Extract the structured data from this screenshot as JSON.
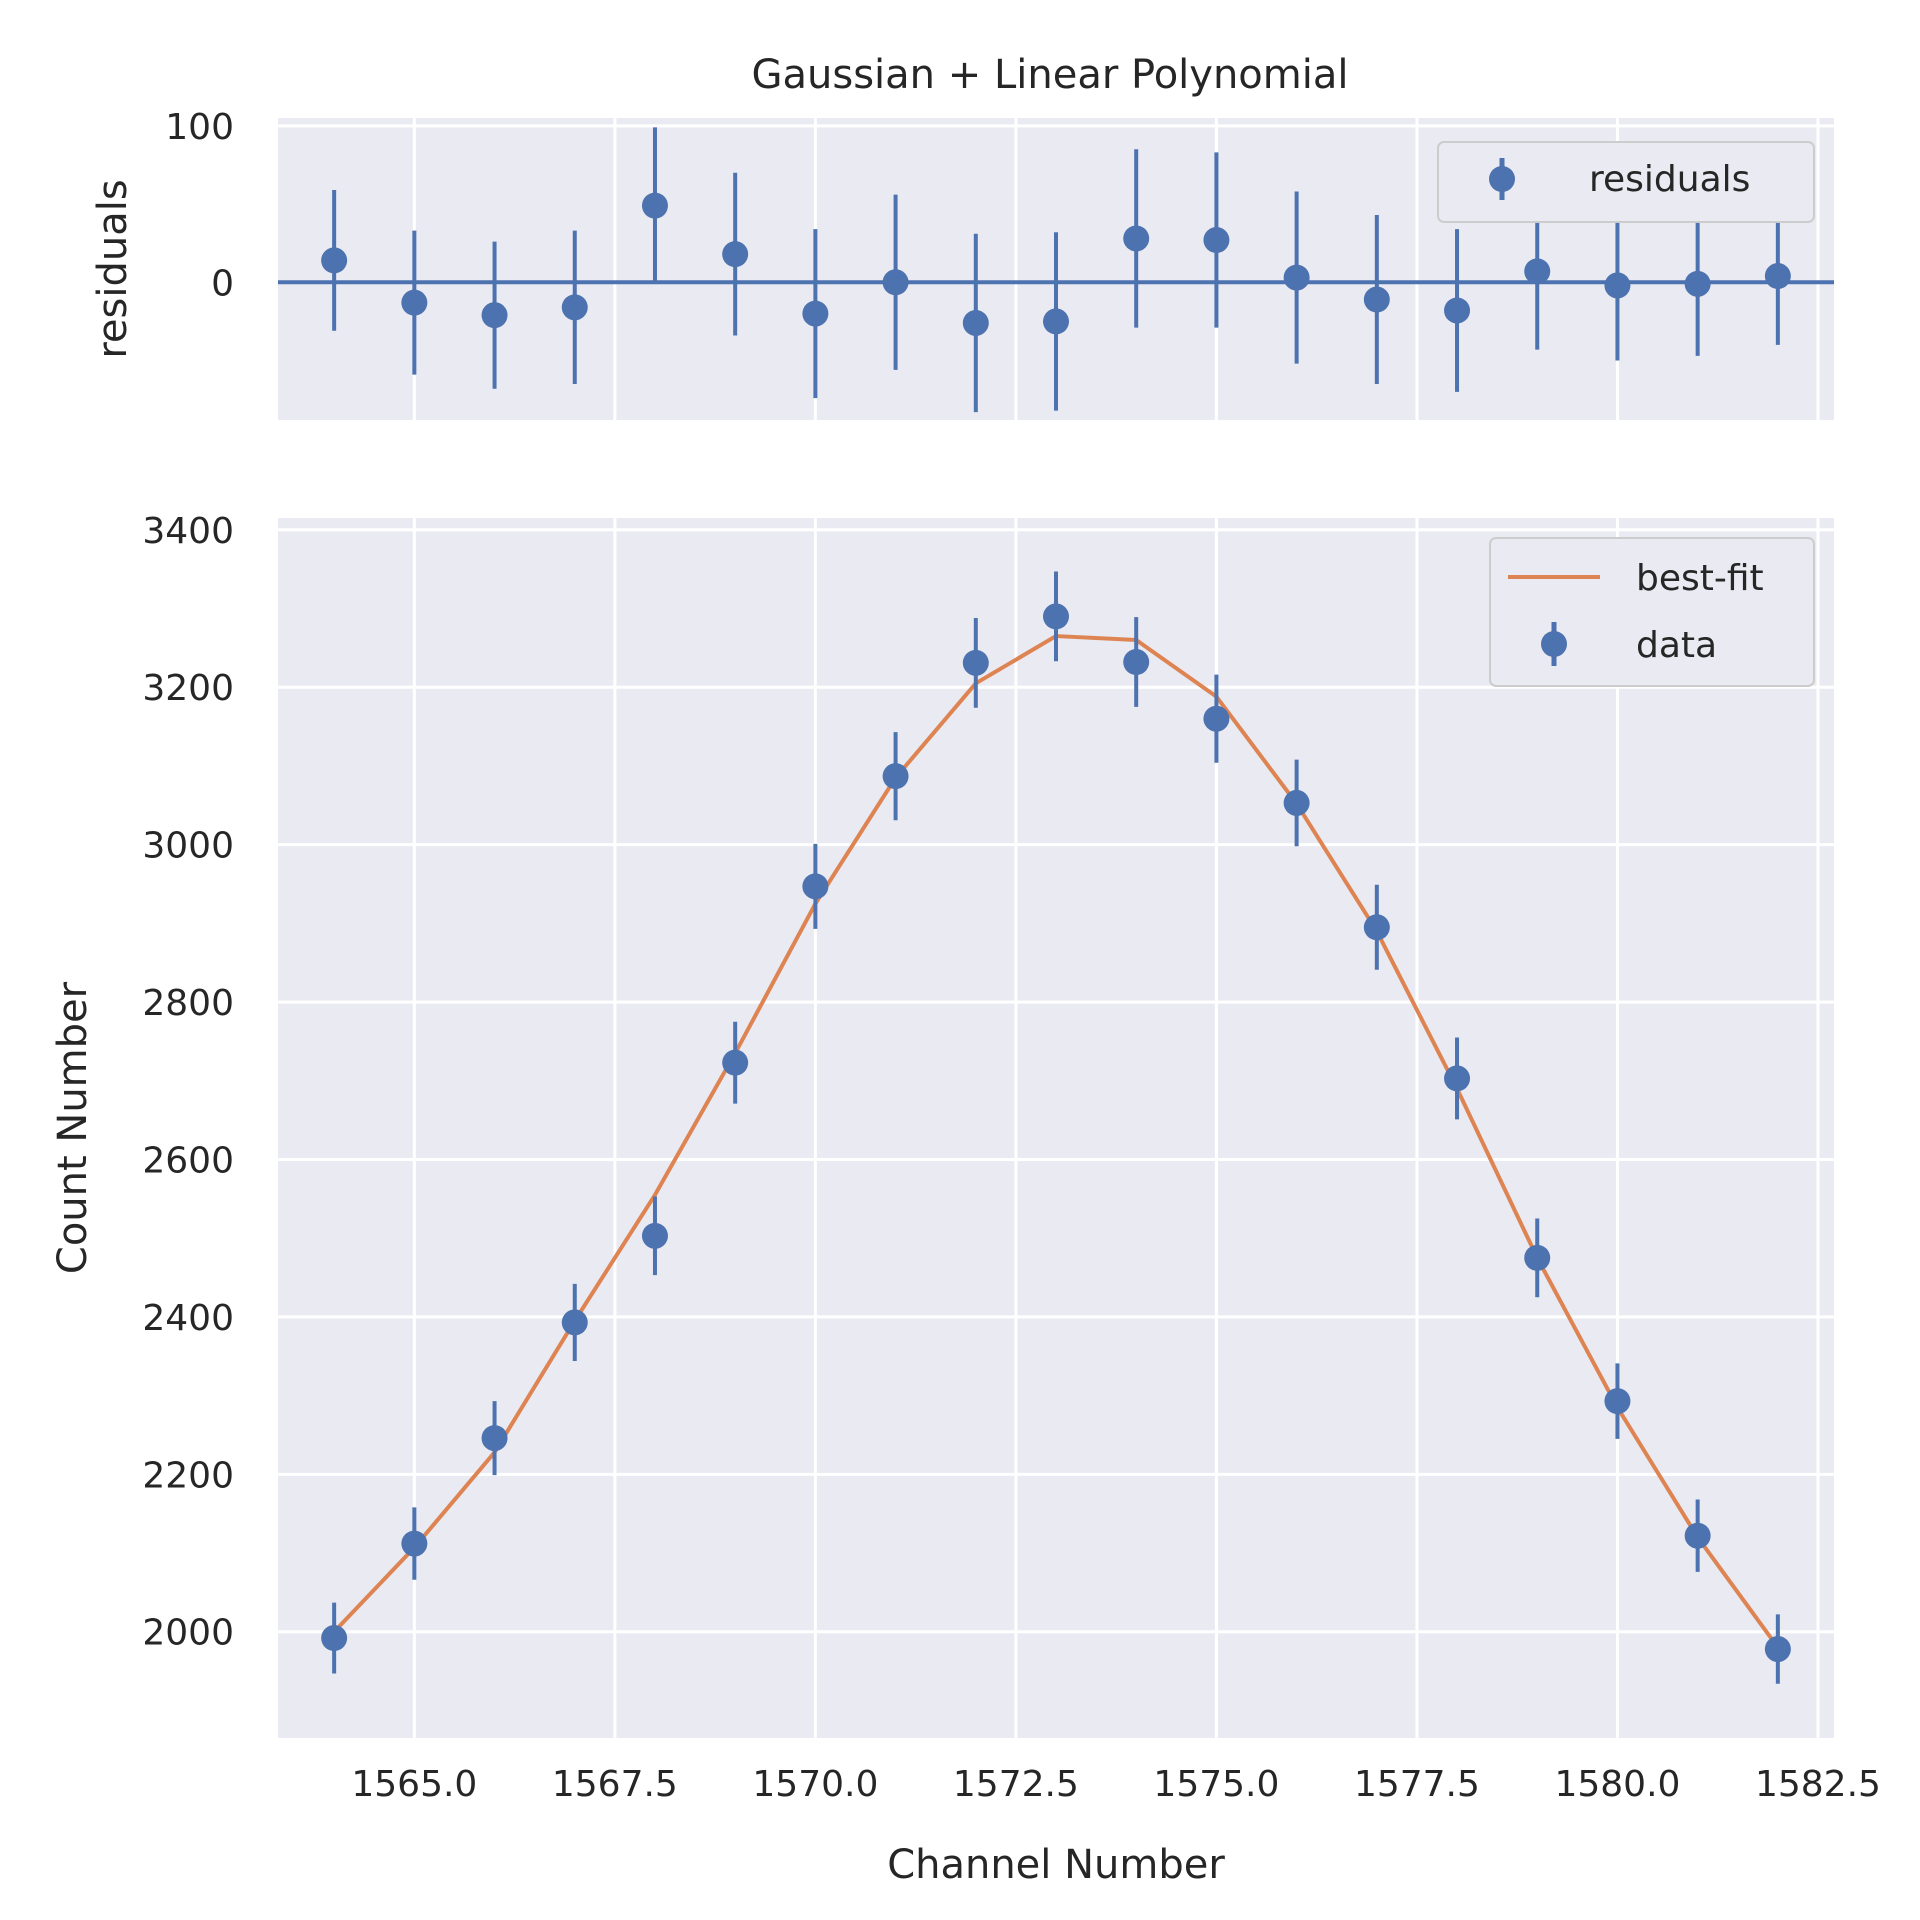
{
  "chart_data": [
    {
      "panel": "residuals",
      "type": "scatter",
      "title": "Gaussian + Linear Polynomial",
      "ylabel": "residuals",
      "xlim": [
        1563.3,
        1582.7
      ],
      "ylim": [
        -88,
        105
      ],
      "yticks": [
        0,
        100
      ],
      "grid": true,
      "legend_position": "top-right",
      "series": [
        {
          "name": "residuals",
          "color": "#4c72b0",
          "x": [
            1564,
            1565,
            1566,
            1567,
            1568,
            1569,
            1570,
            1571,
            1572,
            1573,
            1574,
            1575,
            1576,
            1577,
            1578,
            1579,
            1580,
            1581,
            1582
          ],
          "y": [
            14,
            -13,
            -21,
            -16,
            49,
            18,
            -20,
            0,
            -26,
            -25,
            28,
            27,
            3,
            -11,
            -18,
            7,
            -2,
            -1,
            4
          ],
          "yerr": [
            45,
            46,
            47,
            49,
            50,
            52,
            54,
            56,
            57,
            57,
            57,
            56,
            55,
            54,
            52,
            50,
            48,
            46,
            44
          ]
        }
      ],
      "reference_line": 0
    },
    {
      "panel": "main",
      "type": "scatter",
      "xlabel": "Channel Number",
      "ylabel": "Count Number",
      "xlim": [
        1563.3,
        1582.7
      ],
      "ylim": [
        1865,
        3415
      ],
      "xticks": [
        1565.0,
        1567.5,
        1570.0,
        1572.5,
        1575.0,
        1577.5,
        1580.0,
        1582.5
      ],
      "xtick_labels": [
        "1565.0",
        "1567.5",
        "1570.0",
        "1572.5",
        "1575.0",
        "1577.5",
        "1580.0",
        "1582.5"
      ],
      "yticks": [
        2000,
        2200,
        2400,
        2600,
        2800,
        3000,
        3200,
        3400
      ],
      "grid": true,
      "legend_position": "top-right",
      "series": [
        {
          "name": "data",
          "kind": "errorbar",
          "color": "#4c72b0",
          "x": [
            1564,
            1565,
            1566,
            1567,
            1568,
            1569,
            1570,
            1571,
            1572,
            1573,
            1574,
            1575,
            1576,
            1577,
            1578,
            1579,
            1580,
            1581,
            1582
          ],
          "y": [
            1992,
            2112,
            2246,
            2393,
            2503,
            2723,
            2947,
            3087,
            3231,
            3290,
            3232,
            3160,
            3053,
            2895,
            2703,
            2475,
            2293,
            2122,
            1978
          ],
          "yerr": [
            45,
            46,
            47,
            49,
            50,
            52,
            54,
            56,
            57,
            57,
            57,
            56,
            55,
            54,
            52,
            50,
            48,
            46,
            44
          ]
        },
        {
          "name": "best-fit",
          "kind": "line",
          "color": "#dd8452",
          "x": [
            1564,
            1565,
            1566,
            1567,
            1568,
            1569,
            1570,
            1571,
            1572,
            1573,
            1574,
            1575,
            1576,
            1577,
            1578,
            1579,
            1580,
            1581,
            1582
          ],
          "y": [
            2000,
            2107,
            2228,
            2395,
            2555,
            2735,
            2925,
            3085,
            3205,
            3265,
            3260,
            3188,
            3052,
            2890,
            2690,
            2475,
            2285,
            2120,
            1980
          ]
        }
      ]
    }
  ]
}
